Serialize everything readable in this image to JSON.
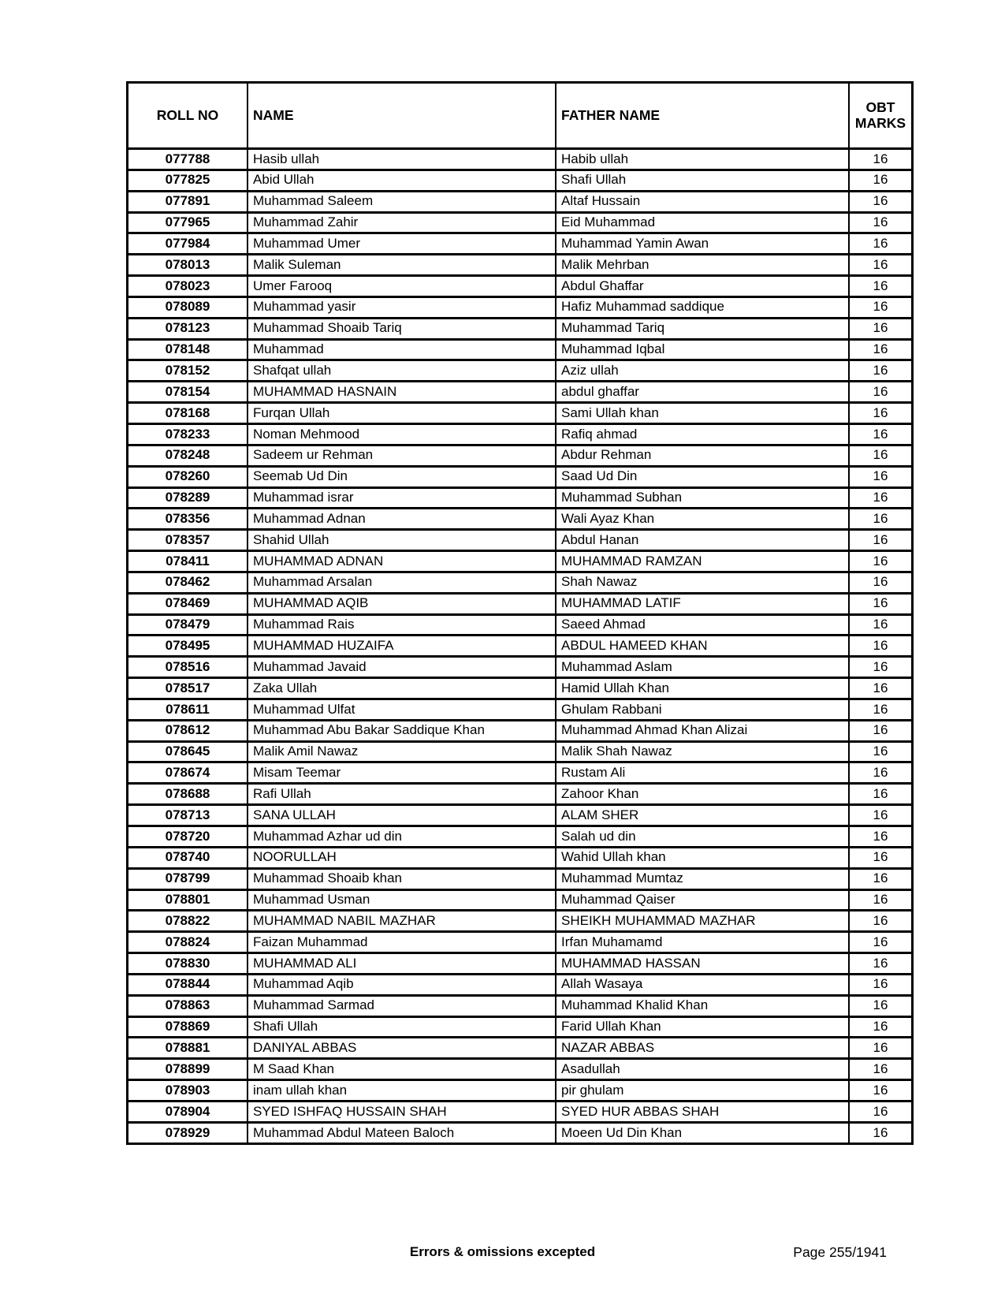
{
  "table": {
    "headers": {
      "roll": "ROLL NO",
      "name": "NAME",
      "father": "FATHER NAME",
      "marks": "OBT MARKS"
    },
    "rows": [
      {
        "roll": "077788",
        "name": "Hasib ullah",
        "father": "Habib ullah",
        "marks": "16"
      },
      {
        "roll": "077825",
        "name": "Abid Ullah",
        "father": "Shafi Ullah",
        "marks": "16"
      },
      {
        "roll": "077891",
        "name": "Muhammad Saleem",
        "father": "Altaf Hussain",
        "marks": "16"
      },
      {
        "roll": "077965",
        "name": "Muhammad Zahir",
        "father": "Eid Muhammad",
        "marks": "16"
      },
      {
        "roll": "077984",
        "name": "Muhammad Umer",
        "father": "Muhammad Yamin Awan",
        "marks": "16"
      },
      {
        "roll": "078013",
        "name": "Malik Suleman",
        "father": "Malik Mehrban",
        "marks": "16"
      },
      {
        "roll": "078023",
        "name": "Umer Farooq",
        "father": "Abdul Ghaffar",
        "marks": "16"
      },
      {
        "roll": "078089",
        "name": "Muhammad yasir",
        "father": "Hafiz Muhammad saddique",
        "marks": "16"
      },
      {
        "roll": "078123",
        "name": "Muhammad Shoaib Tariq",
        "father": "Muhammad Tariq",
        "marks": "16"
      },
      {
        "roll": "078148",
        "name": "Muhammad",
        "father": "Muhammad Iqbal",
        "marks": "16"
      },
      {
        "roll": "078152",
        "name": "Shafqat ullah",
        "father": "Aziz ullah",
        "marks": "16"
      },
      {
        "roll": "078154",
        "name": "MUHAMMAD HASNAIN",
        "father": "abdul ghaffar",
        "marks": "16"
      },
      {
        "roll": "078168",
        "name": "Furqan Ullah",
        "father": "Sami Ullah khan",
        "marks": "16"
      },
      {
        "roll": "078233",
        "name": "Noman Mehmood",
        "father": "Rafiq ahmad",
        "marks": "16"
      },
      {
        "roll": "078248",
        "name": "Sadeem ur Rehman",
        "father": "Abdur Rehman",
        "marks": "16"
      },
      {
        "roll": "078260",
        "name": "Seemab Ud Din",
        "father": "Saad Ud Din",
        "marks": "16"
      },
      {
        "roll": "078289",
        "name": "Muhammad israr",
        "father": "Muhammad Subhan",
        "marks": "16"
      },
      {
        "roll": "078356",
        "name": "Muhammad Adnan",
        "father": "Wali Ayaz Khan",
        "marks": "16"
      },
      {
        "roll": "078357",
        "name": "Shahid Ullah",
        "father": "Abdul Hanan",
        "marks": "16"
      },
      {
        "roll": "078411",
        "name": "MUHAMMAD ADNAN",
        "father": "MUHAMMAD RAMZAN",
        "marks": "16"
      },
      {
        "roll": "078462",
        "name": "Muhammad Arsalan",
        "father": "Shah Nawaz",
        "marks": "16"
      },
      {
        "roll": "078469",
        "name": "MUHAMMAD AQIB",
        "father": "MUHAMMAD LATIF",
        "marks": "16"
      },
      {
        "roll": "078479",
        "name": "Muhammad Rais",
        "father": "Saeed Ahmad",
        "marks": "16"
      },
      {
        "roll": "078495",
        "name": "MUHAMMAD HUZAIFA",
        "father": "ABDUL HAMEED KHAN",
        "marks": "16"
      },
      {
        "roll": "078516",
        "name": "Muhammad Javaid",
        "father": "Muhammad Aslam",
        "marks": "16"
      },
      {
        "roll": "078517",
        "name": "Zaka Ullah",
        "father": "Hamid Ullah Khan",
        "marks": "16"
      },
      {
        "roll": "078611",
        "name": "Muhammad Ulfat",
        "father": "Ghulam Rabbani",
        "marks": "16"
      },
      {
        "roll": "078612",
        "name": "Muhammad Abu Bakar Saddique Khan",
        "father": "Muhammad Ahmad Khan Alizai",
        "marks": "16"
      },
      {
        "roll": "078645",
        "name": "Malik Amil Nawaz",
        "father": "Malik Shah Nawaz",
        "marks": "16"
      },
      {
        "roll": "078674",
        "name": "Misam Teemar",
        "father": "Rustam Ali",
        "marks": "16"
      },
      {
        "roll": "078688",
        "name": "Rafi Ullah",
        "father": "Zahoor Khan",
        "marks": "16"
      },
      {
        "roll": "078713",
        "name": "SANA ULLAH",
        "father": "ALAM SHER",
        "marks": "16"
      },
      {
        "roll": "078720",
        "name": "Muhammad Azhar ud din",
        "father": "Salah ud din",
        "marks": "16"
      },
      {
        "roll": "078740",
        "name": "NOORULLAH",
        "father": "Wahid Ullah khan",
        "marks": "16"
      },
      {
        "roll": "078799",
        "name": "Muhammad Shoaib khan",
        "father": "Muhammad Mumtaz",
        "marks": "16"
      },
      {
        "roll": "078801",
        "name": "Muhammad Usman",
        "father": "Muhammad Qaiser",
        "marks": "16"
      },
      {
        "roll": "078822",
        "name": "MUHAMMAD NABIL MAZHAR",
        "father": "SHEIKH MUHAMMAD MAZHAR",
        "marks": "16"
      },
      {
        "roll": "078824",
        "name": "Faizan Muhammad",
        "father": "Irfan Muhamamd",
        "marks": "16"
      },
      {
        "roll": "078830",
        "name": "MUHAMMAD ALI",
        "father": "MUHAMMAD HASSAN",
        "marks": "16"
      },
      {
        "roll": "078844",
        "name": "Muhammad Aqib",
        "father": "Allah Wasaya",
        "marks": "16"
      },
      {
        "roll": "078863",
        "name": "Muhammad Sarmad",
        "father": "Muhammad Khalid Khan",
        "marks": "16"
      },
      {
        "roll": "078869",
        "name": "Shafi Ullah",
        "father": "Farid Ullah Khan",
        "marks": "16"
      },
      {
        "roll": "078881",
        "name": "DANIYAL ABBAS",
        "father": "NAZAR ABBAS",
        "marks": "16"
      },
      {
        "roll": "078899",
        "name": "M Saad Khan",
        "father": "Asadullah",
        "marks": "16"
      },
      {
        "roll": "078903",
        "name": "inam ullah khan",
        "father": "pir ghulam",
        "marks": "16"
      },
      {
        "roll": "078904",
        "name": "SYED ISHFAQ HUSSAIN SHAH",
        "father": "SYED HUR ABBAS SHAH",
        "marks": "16"
      },
      {
        "roll": "078929",
        "name": "Muhammad Abdul Mateen Baloch",
        "father": "Moeen Ud Din Khan",
        "marks": "16"
      }
    ]
  },
  "footer": {
    "note": "Errors & omissions excepted",
    "page": "Page 255/1941"
  }
}
